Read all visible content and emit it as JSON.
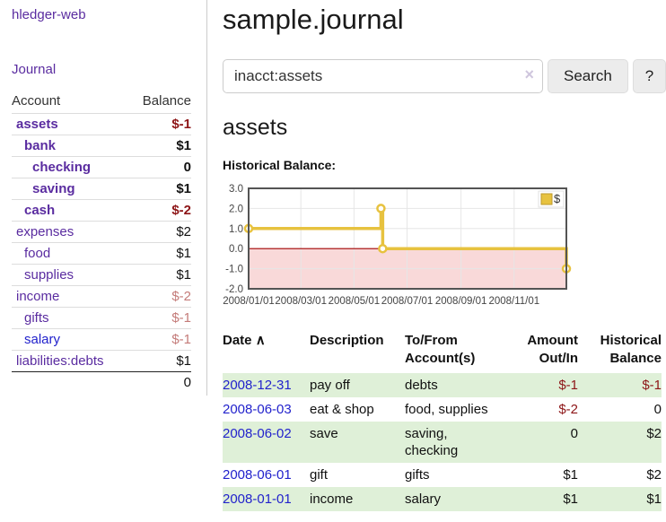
{
  "app": {
    "title": "hledger-web"
  },
  "sidebar": {
    "journal_link": "Journal",
    "table": {
      "col_account": "Account",
      "col_balance": "Balance",
      "accounts": [
        {
          "name": "assets",
          "depth": 1,
          "bold": true,
          "balance": "$-1",
          "neg": "strong"
        },
        {
          "name": "bank",
          "depth": 2,
          "bold": true,
          "balance": "$1",
          "neg": "none"
        },
        {
          "name": "checking",
          "depth": 3,
          "bold": true,
          "balance": "0",
          "neg": "none"
        },
        {
          "name": "saving",
          "depth": 3,
          "bold": true,
          "balance": "$1",
          "neg": "none"
        },
        {
          "name": "cash",
          "depth": 2,
          "bold": true,
          "balance": "$-2",
          "neg": "strong"
        },
        {
          "name": "expenses",
          "depth": 1,
          "bold": false,
          "balance": "$2",
          "neg": "none"
        },
        {
          "name": "food",
          "depth": 2,
          "bold": false,
          "balance": "$1",
          "neg": "none"
        },
        {
          "name": "supplies",
          "depth": 2,
          "bold": false,
          "balance": "$1",
          "neg": "none"
        },
        {
          "name": "income",
          "depth": 1,
          "bold": false,
          "balance": "$-2",
          "neg": "muted"
        },
        {
          "name": "gifts",
          "depth": 2,
          "bold": false,
          "balance": "$-1",
          "neg": "muted"
        },
        {
          "name": "salary",
          "depth": 2,
          "bold": false,
          "balance": "$-1",
          "neg": "muted",
          "link_blue": true
        },
        {
          "name": "liabilities:debts",
          "depth": 1,
          "bold": false,
          "balance": "$1",
          "neg": "none"
        }
      ],
      "total": "0"
    }
  },
  "header": {
    "title": "sample.journal"
  },
  "search": {
    "value": "inacct:assets",
    "clear_icon": "×",
    "button": "Search",
    "help_button": "?"
  },
  "account_page": {
    "heading": "assets",
    "chart_label": "Historical Balance:"
  },
  "chart_data": {
    "type": "line",
    "step": true,
    "title": "Historical Balance",
    "ylim": [
      -2,
      3
    ],
    "x_domain": [
      "2008-01-01",
      "2008-12-31"
    ],
    "y_ticks": [
      "3.0",
      "2.0",
      "1.0",
      "0.0",
      "-1.0",
      "-2.0"
    ],
    "x_ticks": [
      {
        "date": "2008-01-01",
        "label": "2008/01/01"
      },
      {
        "date": "2008-03-01",
        "label": "2008/03/01"
      },
      {
        "date": "2008-05-01",
        "label": "2008/05/01"
      },
      {
        "date": "2008-07-01",
        "label": "2008/07/01"
      },
      {
        "date": "2008-09-01",
        "label": "2008/09/01"
      },
      {
        "date": "2008-11-01",
        "label": "2008/11/01"
      }
    ],
    "series": [
      {
        "name": "$",
        "color": "#e7c23f",
        "points": [
          {
            "date": "2008-01-01",
            "value": 1
          },
          {
            "date": "2008-06-01",
            "value": 2
          },
          {
            "date": "2008-06-03",
            "value": 0
          },
          {
            "date": "2008-12-31",
            "value": -1
          }
        ]
      }
    ],
    "legend": {
      "label": "$",
      "position": "top-right"
    },
    "grid": true,
    "negative_region_color": "#f9d9d9",
    "zero_line_color": "#a00000",
    "border_color": "#545454",
    "grid_color": "#e6e6e6"
  },
  "transactions": {
    "headers": {
      "date": "Date",
      "sort_icon": "∧",
      "description": "Description",
      "accounts": "To/From\nAccount(s)",
      "amount": "Amount\nOut/In",
      "balance": "Historical\nBalance"
    },
    "rows": [
      {
        "date": "2008-12-31",
        "description": "pay off",
        "accounts": "debts",
        "amount": "$-1",
        "amount_neg": true,
        "balance": "$-1",
        "balance_neg": true,
        "shaded": true
      },
      {
        "date": "2008-06-03",
        "description": "eat & shop",
        "accounts": "food, supplies",
        "amount": "$-2",
        "amount_neg": true,
        "balance": "0",
        "balance_neg": false,
        "shaded": false
      },
      {
        "date": "2008-06-02",
        "description": "save",
        "accounts": "saving,\nchecking",
        "amount": "0",
        "amount_neg": false,
        "balance": "$2",
        "balance_neg": false,
        "shaded": true
      },
      {
        "date": "2008-06-01",
        "description": "gift",
        "accounts": "gifts",
        "amount": "$1",
        "amount_neg": false,
        "balance": "$2",
        "balance_neg": false,
        "shaded": false
      },
      {
        "date": "2008-01-01",
        "description": "income",
        "accounts": "salary",
        "amount": "$1",
        "amount_neg": false,
        "balance": "$1",
        "balance_neg": false,
        "shaded": true
      }
    ]
  },
  "colors": {
    "link_purple": "#5a2ca0",
    "link_blue": "#2222cc",
    "negative_strong": "#8d1517",
    "negative_muted": "#c47b79",
    "row_shade_green": "#dff0d8",
    "series_gold": "#e7c23f"
  }
}
